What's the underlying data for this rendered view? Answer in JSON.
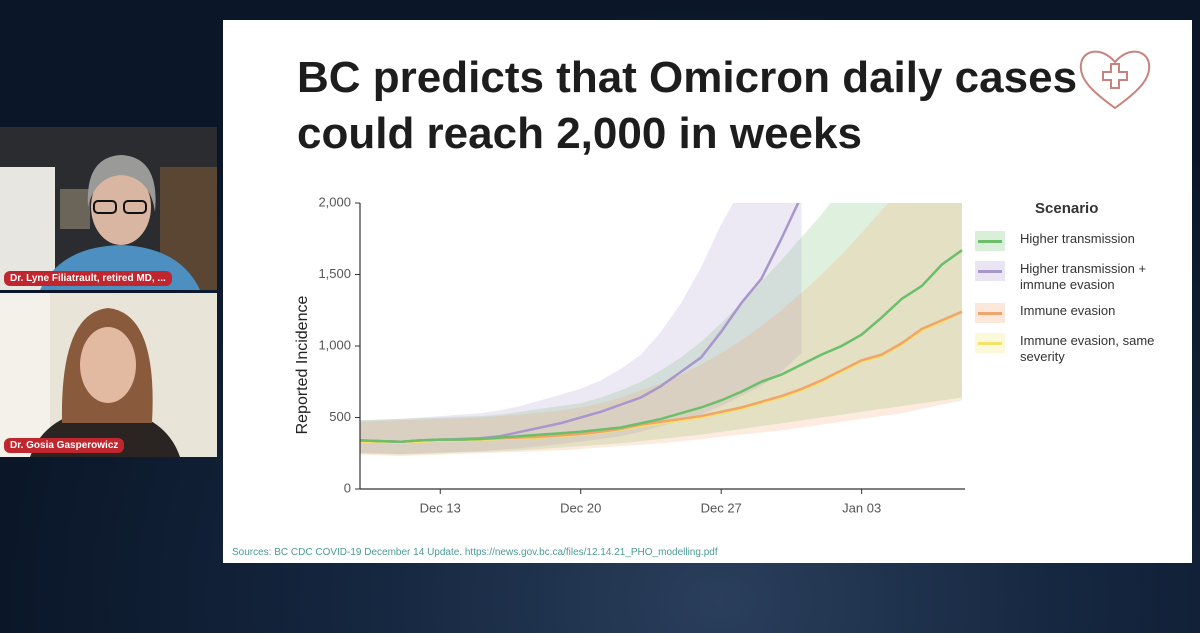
{
  "participants": [
    {
      "name": "Dr. Lyne Filiatrault, retired MD, ..."
    },
    {
      "name": "Dr. Gosia Gasperowicz"
    }
  ],
  "chart_data": {
    "type": "line",
    "title": "BC predicts that Omicron daily cases could reach 2,000 in weeks",
    "source": "Sources: BC CDC COVID-19 December 14 Update. https://news.gov.bc.ca/files/12.14.21_PHO_modelling.pdf",
    "y_label": "Reported Incidence",
    "legend_title": "Scenario",
    "categories": [
      null,
      null,
      null,
      null,
      "Dec 13",
      null,
      null,
      null,
      null,
      null,
      null,
      "Dec 20",
      null,
      null,
      null,
      null,
      null,
      null,
      "Dec 27",
      null,
      null,
      null,
      null,
      null,
      null,
      "Jan 03",
      null,
      null,
      null,
      null,
      null
    ],
    "ylim": [
      0,
      2000
    ],
    "yticks": [
      0,
      500,
      {
        "value": 1000,
        "label": "1,000"
      },
      {
        "value": 1500,
        "label": "1,500"
      },
      {
        "value": 2000,
        "label": "2,000"
      }
    ],
    "series": [
      {
        "name": "Higher transmission",
        "color": "#6cbf6a",
        "values": [
          340,
          335,
          330,
          340,
          345,
          345,
          350,
          360,
          370,
          380,
          390,
          400,
          415,
          430,
          460,
          490,
          530,
          570,
          620,
          680,
          750,
          800,
          870,
          940,
          1000,
          1080,
          1200,
          1330,
          1420,
          1570,
          1670
        ],
        "lower": [
          250,
          245,
          240,
          245,
          250,
          255,
          260,
          265,
          270,
          280,
          290,
          300,
          310,
          320,
          335,
          350,
          365,
          380,
          400,
          420,
          440,
          460,
          480,
          500,
          520,
          540,
          560,
          580,
          600,
          620,
          640
        ],
        "upper": [
          480,
          485,
          490,
          495,
          500,
          505,
          510,
          520,
          540,
          560,
          580,
          600,
          640,
          690,
          750,
          830,
          920,
          1030,
          1160,
          1300,
          1450,
          1600,
          1760,
          1920,
          2100,
          2300,
          2500,
          2700,
          2900,
          3100,
          3300
        ]
      },
      {
        "name": "Higher  transmission + immune evasion",
        "color": "#a896cc",
        "values": [
          340,
          335,
          330,
          340,
          345,
          350,
          355,
          370,
          400,
          430,
          460,
          500,
          540,
          590,
          640,
          720,
          820,
          920,
          1100,
          1300,
          1470,
          1750,
          2050,
          null,
          null,
          null,
          null,
          null,
          null,
          null,
          null
        ],
        "lower": [
          250,
          250,
          245,
          250,
          255,
          260,
          265,
          275,
          285,
          300,
          315,
          330,
          350,
          370,
          400,
          440,
          480,
          520,
          580,
          650,
          720,
          820,
          950,
          null,
          null,
          null,
          null,
          null,
          null,
          null,
          null
        ],
        "upper": [
          480,
          485,
          490,
          500,
          510,
          520,
          530,
          550,
          580,
          620,
          660,
          700,
          760,
          840,
          940,
          1100,
          1300,
          1550,
          1850,
          2100,
          2300,
          2500,
          2700,
          null,
          null,
          null,
          null,
          null,
          null,
          null,
          null
        ]
      },
      {
        "name": "Immune evasion",
        "color": "#f2a56a",
        "values": [
          340,
          335,
          330,
          340,
          345,
          345,
          350,
          355,
          360,
          365,
          375,
          385,
          400,
          420,
          450,
          470,
          490,
          510,
          540,
          570,
          610,
          650,
          700,
          760,
          830,
          900,
          940,
          1020,
          1120,
          1180,
          1240
        ],
        "lower": [
          240,
          235,
          230,
          235,
          240,
          245,
          250,
          255,
          260,
          265,
          270,
          280,
          290,
          300,
          310,
          320,
          335,
          350,
          365,
          380,
          395,
          410,
          430,
          450,
          470,
          490,
          510,
          530,
          560,
          590,
          620
        ],
        "upper": [
          470,
          475,
          480,
          485,
          490,
          495,
          500,
          510,
          520,
          535,
          550,
          570,
          600,
          640,
          690,
          740,
          800,
          870,
          950,
          1040,
          1140,
          1250,
          1370,
          1500,
          1640,
          1790,
          1950,
          2100,
          2250,
          2400,
          2550
        ]
      },
      {
        "name": "Immune evasion, same severity",
        "color": "#f3e36c",
        "values": [
          330,
          330,
          325,
          330,
          340,
          340,
          345,
          350,
          355,
          360,
          370,
          380,
          395,
          415,
          440,
          460,
          480,
          500,
          530,
          560,
          600,
          640,
          690,
          750,
          820,
          890,
          930,
          1010,
          1110,
          1170,
          1240
        ]
      }
    ]
  }
}
